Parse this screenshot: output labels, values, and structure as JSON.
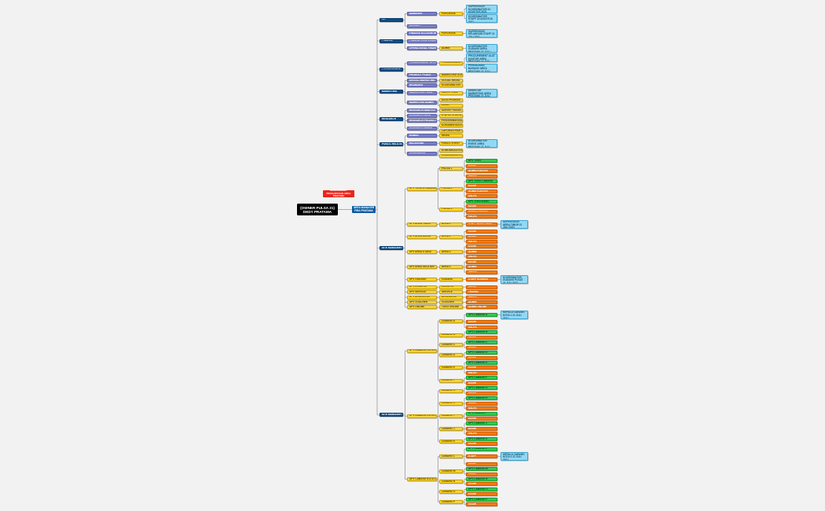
{
  "root": {
    "line1": "(OWNER PULSA 21)",
    "line2": "DEDY PRATAMA"
  },
  "area_manager": {
    "line1": "AREA MANAGER",
    "line2": "FIRA PRATAMA"
  },
  "badge": {
    "line1": "MANAGEMENT",
    "line2": "PENGAWASAN AREA PRATAMA"
  },
  "colors": {
    "b": "#0d4f8b",
    "p": "#7b80c6",
    "y": "#f8d338",
    "o": "#f47a0c",
    "g": "#2fcb50",
    "c": "#90d9f6",
    "connector": "#9a9a9a"
  },
  "tree": [
    {
      "t": "HR",
      "c": "b",
      "k": [
        {
          "t": "MANAGER",
          "c": "p",
          "k": [
            {
              "t": "PURCHASE",
              "c": "y",
              "k": [
                {
                  "t": "SUPERVISOR KOORDINATOR 31 AGUSTUS 2021",
                  "c": "c"
                },
                {
                  "t": "KOORDINATOR STAFF 30 AGUSTUS 2021",
                  "c": "c"
                }
              ]
            }
          ]
        },
        {
          "t": "RECRUIT",
          "c": "p"
        }
      ]
    },
    {
      "t": "FINANCE",
      "c": "b",
      "k": [
        {
          "t": "FINANCE ACCOUNTING",
          "c": "p",
          "k": [
            {
              "t": "PURCHASE",
              "c": "y",
              "k": [
                {
                  "t": "SUPERVISOR KEUANGAN STAFF 21 JULI 2021",
                  "c": "c"
                }
              ]
            }
          ]
        },
        {
          "t": "FINANCE CONTROLLER",
          "c": "p"
        },
        {
          "t": "OPERATIONAL FINANCE",
          "c": "p",
          "k": [
            {
              "t": "ADMIN",
              "c": "y",
              "k": [
                {
                  "t": "KOORDINATOR GUDANG AREA PRATAMA 21 JULI 2021",
                  "c": "c"
                }
              ]
            }
          ]
        }
      ]
    },
    {
      "t": "PROCUREMENT",
      "c": "b",
      "k": [
        {
          "t": "PROCUREMENT OFFICER",
          "c": "p",
          "k": [
            {
              "t": "PROCUREMENT STAFF",
              "c": "y",
              "k": [
                {
                  "t": "PROCUREMENT ALAT KANTOR AREA PRATAMA 21 JULI 2021",
                  "c": "c"
                },
                {
                  "t": "PENGADAAN BARANG AREA PRATAMA 21 JULI 2021",
                  "c": "c"
                }
              ]
            }
          ]
        },
        {
          "t": "PRODUCT PLACE",
          "c": "p",
          "k": [
            {
              "t": "MARKETING SUPPORT",
              "c": "y"
            }
          ]
        }
      ]
    },
    {
      "t": "MARKETING",
      "c": "b",
      "k": [
        {
          "t": "DIGITAL MARKETING",
          "c": "p",
          "k": [
            {
              "t": "SOCIAL MEDIA",
              "c": "y"
            }
          ]
        },
        {
          "t": "BRANDING",
          "c": "p",
          "k": [
            {
              "t": "KOORDINATOR",
              "c": "y"
            }
          ]
        },
        {
          "t": "MARKETING FIELD",
          "c": "p",
          "k": [
            {
              "t": "SALES TEAM",
              "c": "y",
              "k": [
                {
                  "t": "DIREKTUR MARKETING AREA PRATAMA 21 JULI 2021",
                  "c": "c"
                }
              ]
            }
          ]
        },
        {
          "t": "MARKETING ADMIN",
          "c": "p",
          "k": [
            {
              "t": "DATA PROMOSI",
              "c": "y"
            },
            {
              "t": "IKLAN",
              "c": "y"
            }
          ]
        }
      ]
    },
    {
      "t": "RESEARCH",
      "c": "b",
      "k": [
        {
          "t": "RESEARCH ANALYST",
          "c": "p",
          "k": [
            {
              "t": "SURVEY PASAR",
              "c": "y"
            }
          ]
        },
        {
          "t": "RESEARCH DATA",
          "c": "p",
          "k": [
            {
              "t": "STATISTIK DATA",
              "c": "y"
            }
          ]
        },
        {
          "t": "RESEARCH PRODUCT",
          "c": "p",
          "k": [
            {
              "t": "PENGEMBANGAN PRODUK",
              "c": "y"
            }
          ]
        },
        {
          "t": "RESEARCH ADMIN",
          "c": "p",
          "k": [
            {
              "t": "DOKUMENTASI RISET",
              "c": "y"
            },
            {
              "t": "LAPORAN RISET",
              "c": "y"
            }
          ]
        }
      ]
    },
    {
      "t": "PUBLIC RELATIONS",
      "c": "b",
      "k": [
        {
          "t": "HUMAS",
          "c": "p",
          "k": [
            {
              "t": "MEDIA",
              "c": "y"
            }
          ]
        },
        {
          "t": "RELATIONS",
          "c": "p",
          "k": [
            {
              "t": "PUBLIC EVENT",
              "c": "y",
              "k": [
                {
                  "t": "KOORDINATOR EVENT AREA PRATAMA 21 JULI 2021",
                  "c": "c"
                }
              ]
            }
          ]
        },
        {
          "t": "KOMUNIKASI",
          "c": "p",
          "k": [
            {
              "t": "KOMUNIKASI INTERNAL",
              "c": "y"
            },
            {
              "t": "KOMUNIKASI EKSTERNAL",
              "c": "y"
            }
          ]
        }
      ]
    },
    {
      "t": "SITE MANAGER PUSAT",
      "c": "b",
      "k": [
        {
          "t": "SPV TOKO & CABANG UTAMA",
          "c": "y",
          "k": [
            {
              "t": "PULSA 1",
              "c": "y",
              "k": [
                {
                  "t": "SPV TOKO",
                  "c": "g"
                },
                {
                  "t": "KASIR",
                  "c": "o"
                },
                {
                  "t": "ADMIN KONTER",
                  "c": "o"
                },
                {
                  "t": "SALES",
                  "c": "o"
                }
              ]
            },
            {
              "t": "PULSA 2",
              "c": "y",
              "k": [
                {
                  "t": "SPV TOKO CABANG",
                  "c": "g"
                },
                {
                  "t": "KASIR",
                  "c": "o"
                },
                {
                  "t": "ADMIN KONTER",
                  "c": "o"
                },
                {
                  "t": "SALES",
                  "c": "o"
                }
              ]
            },
            {
              "t": "PULSA 3",
              "c": "y",
              "k": [
                {
                  "t": "SPV TOKO BARU",
                  "c": "g"
                },
                {
                  "t": "KASIR",
                  "c": "o"
                },
                {
                  "t": "ADMIN KONTER",
                  "c": "o"
                },
                {
                  "t": "SALES",
                  "c": "o"
                }
              ]
            }
          ]
        },
        {
          "t": "SPV AREA TIMUR",
          "c": "y",
          "k": [
            {
              "t": "AREA 1",
              "c": "y",
              "k": [
                {
                  "t": "STAFF AREA TIMUR",
                  "c": "o",
                  "k": [
                    {
                      "t": "SUPERVISOR AREA TIMUR 21 JULI 2021",
                      "c": "c"
                    }
                  ]
                }
              ]
            }
          ]
        },
        {
          "t": "SPV AREA BARAT",
          "c": "y",
          "k": [
            {
              "t": "AREA 2",
              "c": "y",
              "k": [
                {
                  "t": "KASIR",
                  "c": "o"
                },
                {
                  "t": "ADMIN",
                  "c": "o"
                },
                {
                  "t": "SALES",
                  "c": "o"
                }
              ]
            }
          ]
        },
        {
          "t": "SPV AREA UTARA",
          "c": "y",
          "k": [
            {
              "t": "AREA 3",
              "c": "y",
              "k": [
                {
                  "t": "KASIR",
                  "c": "o"
                },
                {
                  "t": "ADMIN",
                  "c": "o"
                },
                {
                  "t": "SALES",
                  "c": "o"
                }
              ]
            }
          ]
        },
        {
          "t": "SPV AREA SELATAN",
          "c": "y",
          "k": [
            {
              "t": "AREA 4",
              "c": "y",
              "k": [
                {
                  "t": "KASIR",
                  "c": "o"
                },
                {
                  "t": "ADMIN",
                  "c": "o"
                },
                {
                  "t": "SALES",
                  "c": "o"
                }
              ]
            }
          ]
        },
        {
          "t": "SPV GUDANG",
          "c": "y",
          "k": [
            {
              "t": "GUDANG",
              "c": "y",
              "k": [
                {
                  "t": "STAFF GUDANG",
                  "c": "o",
                  "k": [
                    {
                      "t": "KOORDINATOR GUDANG PUSAT 21 JULI 2021",
                      "c": "c"
                    }
                  ]
                }
              ]
            }
          ]
        },
        {
          "t": "SPV LOGISTIK",
          "c": "y",
          "k": [
            {
              "t": "LOGISTIK",
              "c": "y",
              "k": [
                {
                  "t": "KURIR",
                  "c": "o"
                }
              ]
            }
          ]
        },
        {
          "t": "SPV SERVICE",
          "c": "y",
          "k": [
            {
              "t": "SERVICE",
              "c": "y",
              "k": [
                {
                  "t": "TEKNISI",
                  "c": "o"
                }
              ]
            }
          ]
        },
        {
          "t": "SPV AKSESORIS",
          "c": "y",
          "k": [
            {
              "t": "AKSESORIS",
              "c": "y",
              "k": [
                {
                  "t": "SALES",
                  "c": "o"
                }
              ]
            }
          ]
        },
        {
          "t": "SPV VOUCHER",
          "c": "y",
          "k": [
            {
              "t": "VOUCHER",
              "c": "y",
              "k": [
                {
                  "t": "ADMIN",
                  "c": "o"
                }
              ]
            }
          ]
        },
        {
          "t": "SPV ONLINE",
          "c": "y",
          "k": [
            {
              "t": "TOKO ONLINE",
              "c": "y",
              "k": [
                {
                  "t": "ADMIN ONLINE",
                  "c": "o"
                }
              ]
            }
          ]
        }
      ]
    },
    {
      "t": "SITE MANAGER CABANG",
      "c": "b",
      "k": [
        {
          "t": "SPV CABANG KOTA 1",
          "c": "y",
          "k": [
            {
              "t": "CABANG A",
              "c": "y",
              "k": [
                {
                  "t": "SPV CABANG A",
                  "c": "g",
                  "k": [
                    {
                      "t": "KEPALA CABANG KOTA 1 21 JULI 2021",
                      "c": "c"
                    }
                  ]
                },
                {
                  "t": "KASIR",
                  "c": "o"
                },
                {
                  "t": "SALES",
                  "c": "o"
                }
              ]
            },
            {
              "t": "CABANG B",
              "c": "y",
              "k": [
                {
                  "t": "SPV CABANG B",
                  "c": "g"
                },
                {
                  "t": "KASIR",
                  "c": "o"
                }
              ]
            },
            {
              "t": "CABANG C",
              "c": "y",
              "k": [
                {
                  "t": "SPV CABANG C",
                  "c": "g"
                },
                {
                  "t": "KASIR",
                  "c": "o"
                }
              ]
            },
            {
              "t": "CABANG D",
              "c": "y",
              "k": [
                {
                  "t": "SPV CABANG D",
                  "c": "g"
                },
                {
                  "t": "KASIR",
                  "c": "o"
                }
              ]
            },
            {
              "t": "CABANG E",
              "c": "y",
              "k": [
                {
                  "t": "SPV CABANG E",
                  "c": "g"
                },
                {
                  "t": "KASIR",
                  "c": "o"
                },
                {
                  "t": "SALES",
                  "c": "o"
                }
              ]
            },
            {
              "t": "CABANG F",
              "c": "y",
              "k": [
                {
                  "t": "SPV CABANG F",
                  "c": "g"
                },
                {
                  "t": "KASIR",
                  "c": "o"
                }
              ]
            }
          ]
        },
        {
          "t": "SPV CABANG KOTA 2",
          "c": "y",
          "k": [
            {
              "t": "CABANG G",
              "c": "y",
              "k": [
                {
                  "t": "SPV CABANG G",
                  "c": "g"
                },
                {
                  "t": "KASIR",
                  "c": "o"
                }
              ]
            },
            {
              "t": "CABANG H",
              "c": "y",
              "k": [
                {
                  "t": "SPV CABANG H",
                  "c": "g"
                },
                {
                  "t": "KASIR",
                  "c": "o"
                },
                {
                  "t": "SALES",
                  "c": "o"
                }
              ]
            },
            {
              "t": "CABANG I",
              "c": "y",
              "k": [
                {
                  "t": "SPV CABANG I",
                  "c": "g"
                },
                {
                  "t": "KASIR",
                  "c": "o"
                }
              ]
            },
            {
              "t": "CABANG J",
              "c": "y",
              "k": [
                {
                  "t": "SPV CABANG J",
                  "c": "g"
                },
                {
                  "t": "KASIR",
                  "c": "o"
                },
                {
                  "t": "SALES",
                  "c": "o"
                }
              ]
            },
            {
              "t": "CABANG K",
              "c": "y",
              "k": [
                {
                  "t": "SPV CABANG K",
                  "c": "g"
                },
                {
                  "t": "KASIR",
                  "c": "o"
                }
              ]
            }
          ]
        },
        {
          "t": "SPV CABANG KOTA 3",
          "c": "y",
          "k": [
            {
              "t": "CABANG L",
              "c": "y",
              "k": [
                {
                  "t": "SPV CABANG L",
                  "c": "g"
                },
                {
                  "t": "STAFF",
                  "c": "o",
                  "k": [
                    {
                      "t": "KEPALA CABANG KOTA 3 21 JULI 2021",
                      "c": "c"
                    }
                  ]
                },
                {
                  "t": "KASIR",
                  "c": "o"
                }
              ]
            },
            {
              "t": "CABANG M",
              "c": "y",
              "k": [
                {
                  "t": "SPV CABANG M",
                  "c": "g"
                },
                {
                  "t": "KASIR",
                  "c": "o"
                }
              ]
            },
            {
              "t": "CABANG N",
              "c": "y",
              "k": [
                {
                  "t": "SPV CABANG N",
                  "c": "g"
                },
                {
                  "t": "KASIR",
                  "c": "o"
                }
              ]
            },
            {
              "t": "CABANG O",
              "c": "y",
              "k": [
                {
                  "t": "SPV CABANG O",
                  "c": "g"
                },
                {
                  "t": "KASIR",
                  "c": "o"
                }
              ]
            },
            {
              "t": "CABANG P",
              "c": "y",
              "k": [
                {
                  "t": "SPV CABANG P",
                  "c": "g"
                },
                {
                  "t": "KASIR",
                  "c": "o"
                }
              ]
            }
          ]
        }
      ]
    }
  ]
}
